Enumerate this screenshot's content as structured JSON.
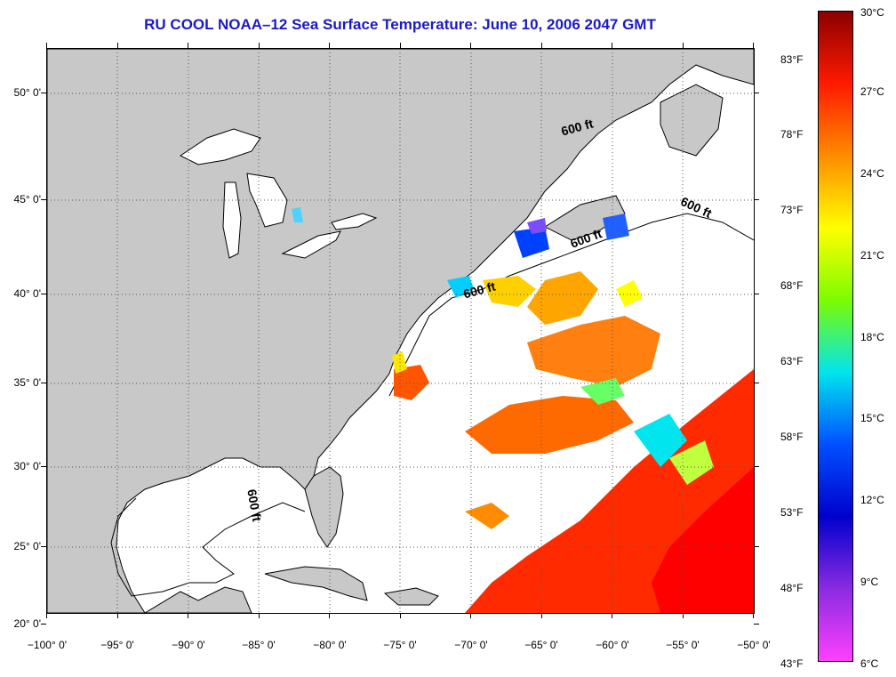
{
  "title": "RU COOL  NOAA–12  Sea Surface Temperature:  June 10, 2006 2047 GMT",
  "map": {
    "lon_range": [
      -100,
      -50
    ],
    "lat_range": [
      20,
      53
    ],
    "land_color": "#c8c8c8",
    "ocean_no_data_color": "#ffffff",
    "lat_ticks": [
      "20° 0'",
      "25° 0'",
      "30° 0'",
      "35° 0'",
      "40° 0'",
      "45° 0'",
      "50° 0'"
    ],
    "lon_ticks": [
      "−100° 0'",
      "−95° 0'",
      "−90° 0'",
      "−85° 0'",
      "−80° 0'",
      "−75° 0'",
      "−70° 0'",
      "−65° 0'",
      "−60° 0'",
      "−55° 0'",
      "−50° 0'"
    ],
    "contour_labels": [
      "600 ft",
      "600 ft",
      "600 ft",
      "600 ft",
      "600 ft"
    ]
  },
  "colorbar": {
    "celsius_labels": [
      "30°C",
      "27°C",
      "24°C",
      "21°C",
      "18°C",
      "15°C",
      "12°C",
      "9°C",
      "6°C"
    ],
    "fahrenheit_labels": [
      "83°F",
      "78°F",
      "73°F",
      "68°F",
      "63°F",
      "58°F",
      "53°F",
      "48°F",
      "43°F"
    ],
    "gradient_colors": [
      "#8b0000",
      "#ff1a00",
      "#ff8c00",
      "#ffff00",
      "#7cfc00",
      "#00e5ee",
      "#0050ff",
      "#0000cd",
      "#8a2be2",
      "#ff40ff"
    ]
  }
}
